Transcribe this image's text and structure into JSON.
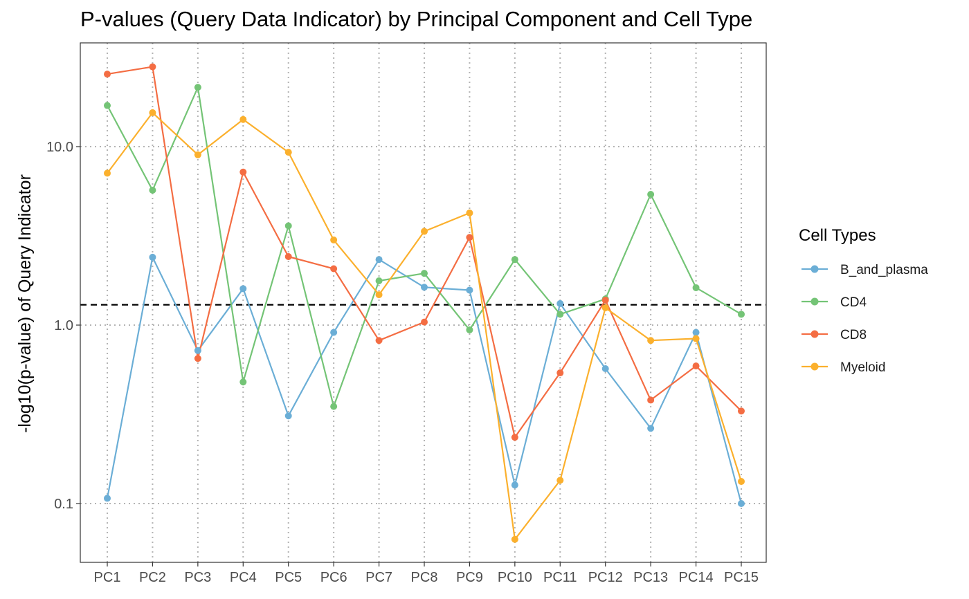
{
  "chart_data": {
    "type": "line",
    "title": "P-values (Query Data Indicator) by Principal Component and Cell Type",
    "xlabel": "",
    "ylabel": "-log10(p-value) of Query Indicator",
    "yscale": "log10",
    "ylim": [
      0.05,
      35
    ],
    "yticks": [
      0.1,
      1.0,
      10.0
    ],
    "ytick_labels": [
      "0.1",
      "1.0",
      "10.0"
    ],
    "grid": "dotted",
    "reference_line": {
      "y": 1.3,
      "style": "dashed",
      "color": "#000000"
    },
    "categories": [
      "PC1",
      "PC2",
      "PC3",
      "PC4",
      "PC5",
      "PC6",
      "PC7",
      "PC8",
      "PC9",
      "PC10",
      "PC11",
      "PC12",
      "PC13",
      "PC14",
      "PC15"
    ],
    "legend": {
      "title": "Cell Types",
      "position": "right"
    },
    "series": [
      {
        "name": "B_and_plasma",
        "color": "#6baed6",
        "values": [
          0.107,
          2.4,
          0.72,
          1.6,
          0.31,
          0.91,
          2.33,
          1.63,
          1.57,
          0.127,
          1.32,
          0.57,
          0.264,
          0.91,
          0.1
        ]
      },
      {
        "name": "CD4",
        "color": "#74c476",
        "values": [
          17.0,
          5.7,
          21.5,
          0.48,
          3.6,
          0.35,
          1.77,
          1.95,
          0.94,
          2.33,
          1.15,
          1.4,
          5.4,
          1.62,
          1.15
        ]
      },
      {
        "name": "CD8",
        "color": "#f46d43",
        "values": [
          25.5,
          28.0,
          0.65,
          7.2,
          2.42,
          2.07,
          0.82,
          1.04,
          3.1,
          0.235,
          0.54,
          1.38,
          0.38,
          0.59,
          0.33
        ]
      },
      {
        "name": "Myeloid",
        "color": "#fbb02d",
        "values": [
          7.1,
          15.5,
          9.0,
          14.2,
          9.3,
          3.0,
          1.48,
          3.35,
          4.25,
          0.063,
          0.135,
          1.25,
          0.82,
          0.84,
          0.133
        ]
      }
    ]
  }
}
